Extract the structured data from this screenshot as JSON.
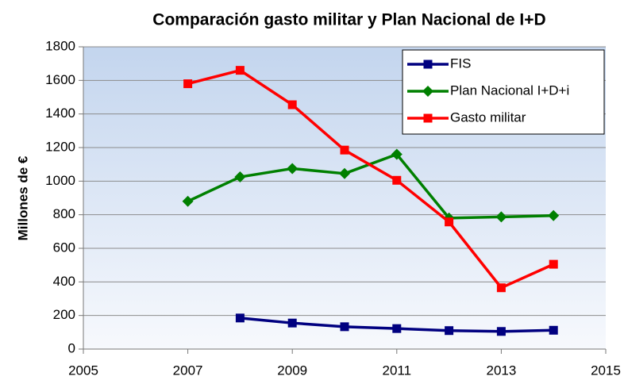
{
  "chart_data": {
    "type": "line",
    "title": "Comparación gasto militar y Plan Nacional de I+D",
    "y_label": "Millones de €",
    "x": [
      2007,
      2008,
      2009,
      2010,
      2011,
      2012,
      2013,
      2014
    ],
    "series": [
      {
        "name": "FIS",
        "color": "#000080",
        "marker": "square",
        "values": [
          null,
          185,
          155,
          133,
          122,
          110,
          105,
          112
        ]
      },
      {
        "name": "Plan Nacional I+D+i",
        "color": "#008000",
        "marker": "diamond",
        "values": [
          880,
          1025,
          1075,
          1045,
          1160,
          780,
          787,
          795
        ]
      },
      {
        "name": "Gasto militar",
        "color": "#ff0000",
        "marker": "square",
        "values": [
          1580,
          1660,
          1455,
          1185,
          1005,
          757,
          365,
          505
        ]
      }
    ],
    "xlim": [
      2005,
      2015
    ],
    "xticks": [
      2005,
      2007,
      2009,
      2011,
      2013,
      2015
    ],
    "ylim": [
      0,
      1800
    ],
    "yticks": [
      0,
      200,
      400,
      600,
      800,
      1000,
      1200,
      1400,
      1600,
      1800
    ],
    "grid": true,
    "legend": "upper right"
  }
}
